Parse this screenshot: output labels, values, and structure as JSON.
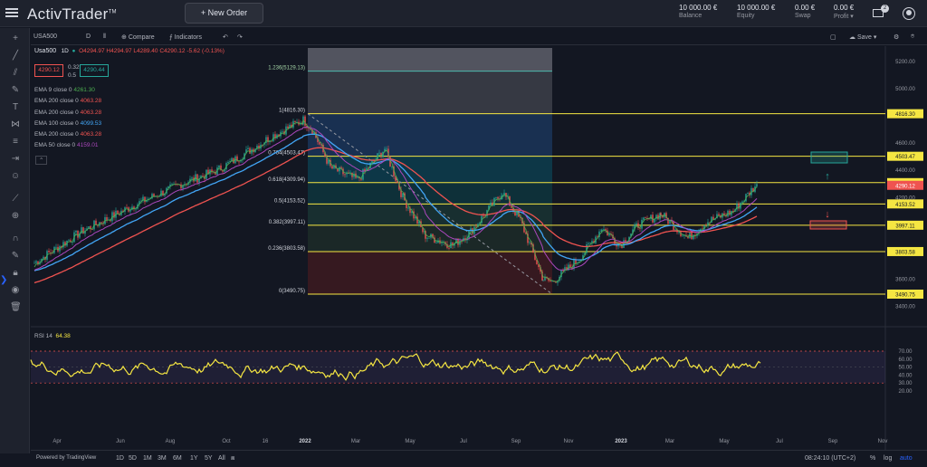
{
  "app": {
    "brand": "ActivTrader",
    "trademark": "TM",
    "new_order": "+ New Order"
  },
  "account": [
    {
      "value": "10 000.00 €",
      "label": "Balance"
    },
    {
      "value": "10 000.00 €",
      "label": "Equity"
    },
    {
      "value": "0.00 €",
      "label": "Swap"
    },
    {
      "value": "0.00 €",
      "label": "Profit"
    }
  ],
  "notifications_count": "2",
  "toolbar": {
    "symbol": "USA500",
    "interval": "D",
    "compare": "Compare",
    "indicators": "Indicators",
    "save": "Save"
  },
  "legend": {
    "name": "Usa500",
    "tf": "1D",
    "ohlc": "O4294.97 H4294.97 L4289.40 C4290.12 -5.62 (-0.13%)",
    "bid": "4290.12",
    "spread_top": "0.32",
    "spread_bottom": "0.5",
    "ask": "4290.44",
    "emas": [
      {
        "label": "EMA 9 close 0",
        "value": "4261.30",
        "color": "#4caf50"
      },
      {
        "label": "EMA 200 close 0",
        "value": "4063.28",
        "color": "#ef5350"
      },
      {
        "label": "EMA 200 close 0",
        "value": "4063.28",
        "color": "#ef5350"
      },
      {
        "label": "EMA 100 close 0",
        "value": "4099.53",
        "color": "#42a5f5"
      },
      {
        "label": "EMA 200 close 0",
        "value": "4063.28",
        "color": "#ef5350"
      },
      {
        "label": "EMA 50 close 0",
        "value": "4159.01",
        "color": "#ab47bc"
      }
    ]
  },
  "fib_levels": [
    {
      "ratio": "1.236(5129.13)",
      "price": 5129.13,
      "axis_label": ""
    },
    {
      "ratio": "1(4816.30)",
      "price": 4816.3,
      "axis_label": "4816.30"
    },
    {
      "ratio": "0.764(4503.47)",
      "price": 4503.47,
      "axis_label": "4503.47"
    },
    {
      "ratio": "0.618(4309.94)",
      "price": 4309.94,
      "axis_label": "4309.94"
    },
    {
      "ratio": "0.5(4153.52)",
      "price": 4153.52,
      "axis_label": "4153.52"
    },
    {
      "ratio": "0.382(3997.11)",
      "price": 3997.11,
      "axis_label": "3997.11"
    },
    {
      "ratio": "0.236(3803.58)",
      "price": 3803.58,
      "axis_label": "3803.58"
    },
    {
      "ratio": "0(3490.75)",
      "price": 3490.75,
      "axis_label": "3490.75"
    }
  ],
  "current_price_label": "4290.12",
  "price_axis": [
    "5200.00",
    "5000.00",
    "4600.00",
    "4400.00",
    "4200.00",
    "3600.00",
    "3400.00"
  ],
  "price_axis_values": [
    5200,
    5000,
    4600,
    4400,
    4200,
    3600,
    3400
  ],
  "rsi": {
    "label": "RSI 14",
    "value": "64.38",
    "axis": [
      "70.00",
      "60.00",
      "50.00",
      "40.00",
      "30.00",
      "20.00"
    ],
    "axis_values": [
      70,
      60,
      50,
      40,
      30,
      20
    ]
  },
  "time_axis": [
    "Apr",
    "Jun",
    "Aug",
    "Oct",
    "16",
    "2022",
    "Mar",
    "May",
    "Jul",
    "Sep",
    "Nov",
    "2023",
    "Mar",
    "May",
    "Jul",
    "Sep",
    "Nov"
  ],
  "timeframes": [
    "1D",
    "5D",
    "1M",
    "3M",
    "6M",
    "1Y",
    "5Y",
    "All"
  ],
  "powered_by": "Powered by TradingView",
  "clock": "08:24:10 (UTC+2)",
  "axis_modes": [
    "%",
    "log",
    "auto"
  ],
  "colors": {
    "bg": "#131722",
    "fib": "#f5e642",
    "ema_red": "#ef5350",
    "ema_blue": "#42a5f5",
    "ema_green": "#4caf50",
    "rsi": "#f5e642"
  }
}
